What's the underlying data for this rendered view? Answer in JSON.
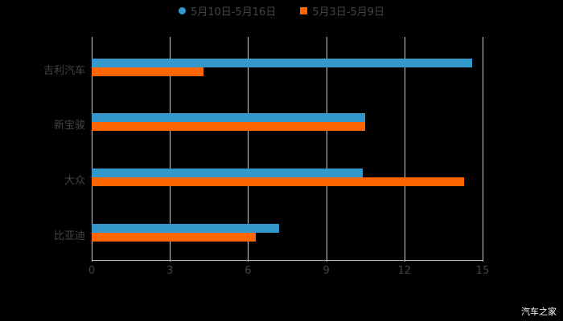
{
  "chart_data": {
    "type": "bar",
    "orientation": "horizontal",
    "categories": [
      "吉利汽车",
      "新宝骏",
      "大众",
      "比亚迪"
    ],
    "series": [
      {
        "name": "5月10日-5月16日",
        "color": "#3399cc",
        "values": [
          14.6,
          10.5,
          10.4,
          7.2
        ]
      },
      {
        "name": "5月3日-5月9日",
        "color": "#ff6600",
        "values": [
          4.3,
          10.5,
          14.3,
          6.3
        ]
      }
    ],
    "title": "",
    "xlabel": "",
    "ylabel": "",
    "xlim": [
      0,
      15
    ],
    "xticks": [
      "0",
      "3",
      "6",
      "9",
      "12",
      "15"
    ],
    "grid": true,
    "legend_position": "top"
  },
  "legend": {
    "items": [
      {
        "label": "5月10日-5月16日",
        "color": "#3399cc"
      },
      {
        "label": "5月3日-5月9日",
        "color": "#ff6600"
      }
    ]
  },
  "watermark": "汽车之家"
}
